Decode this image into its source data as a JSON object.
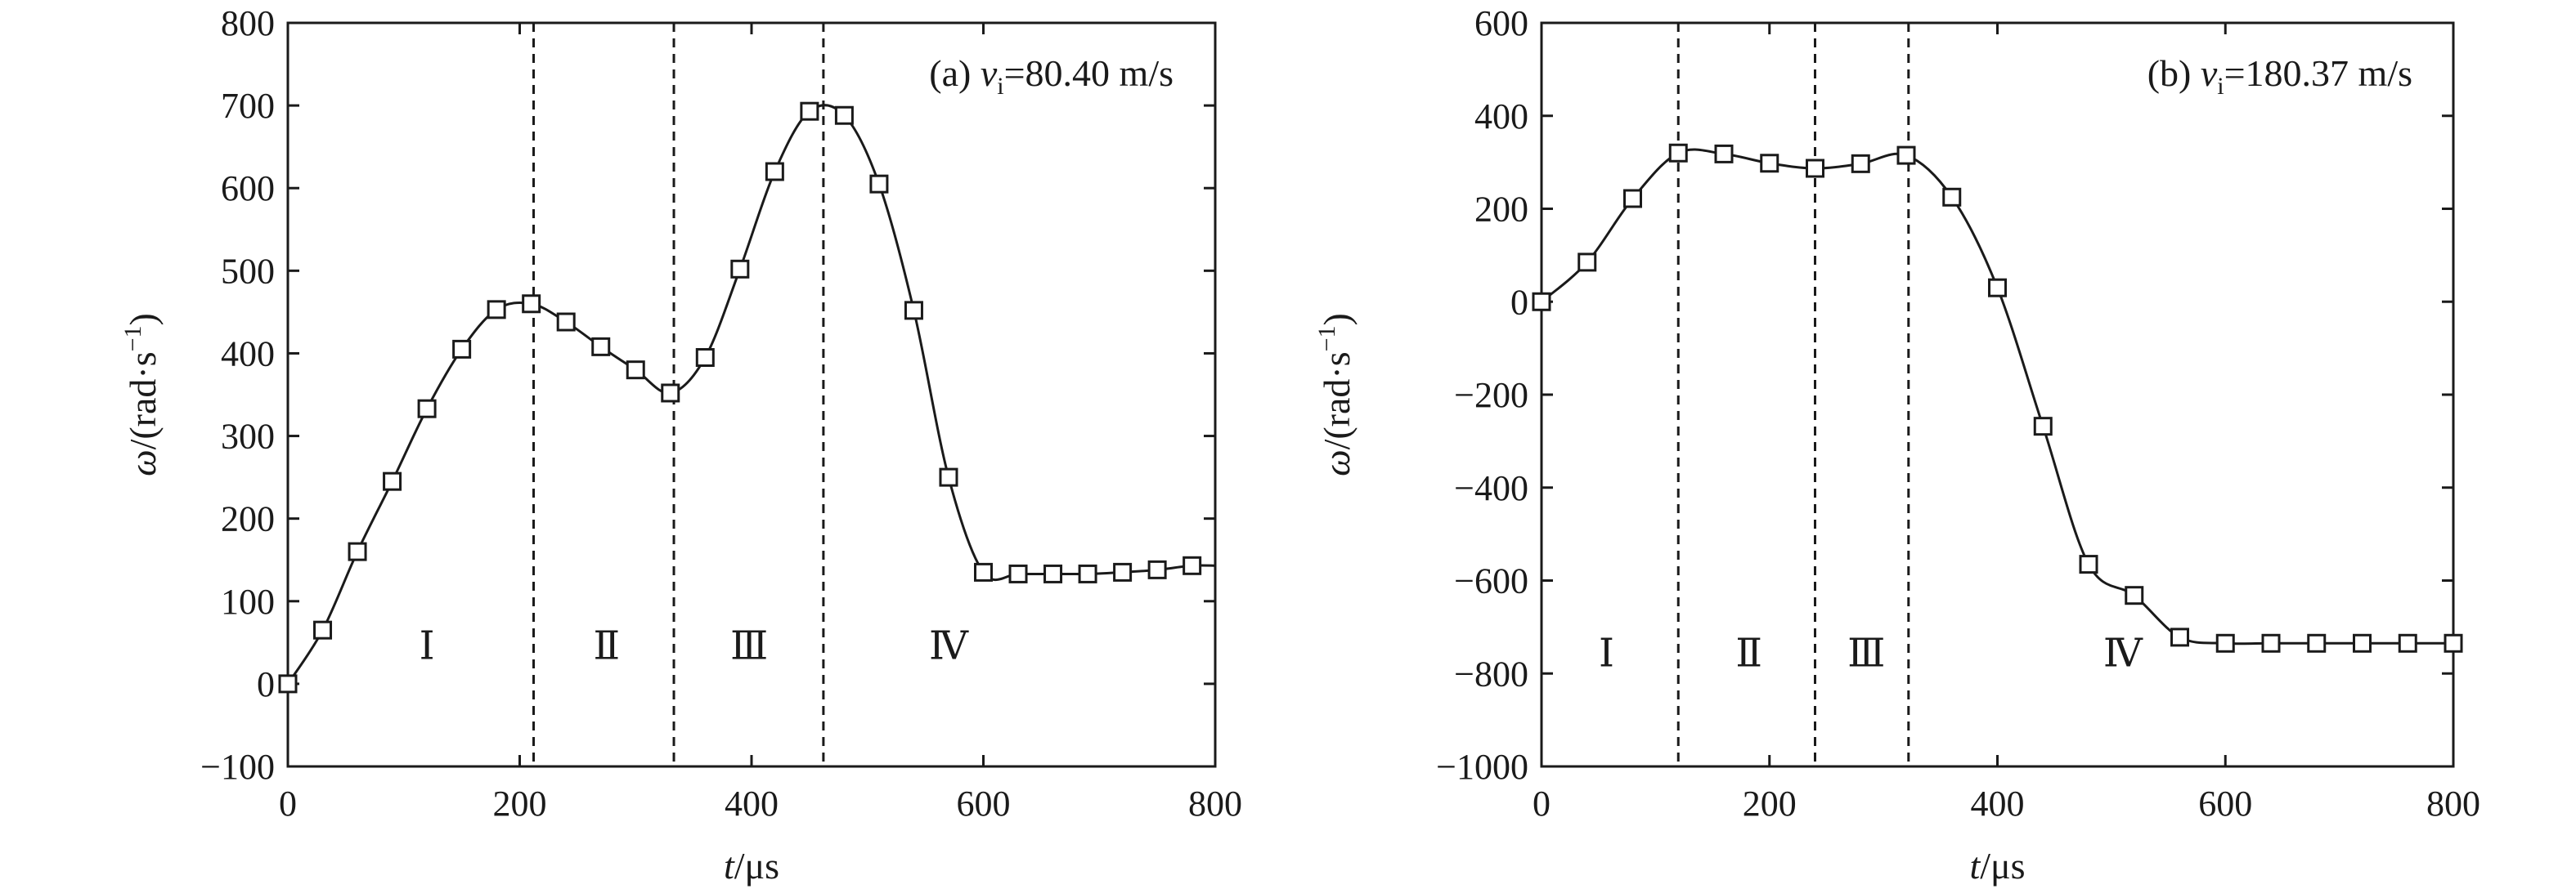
{
  "chart_data": [
    {
      "type": "line",
      "panel": "a",
      "annotation": {
        "prefix": "(a) ",
        "var": "v",
        "sub": "i",
        "value": "=80.40 m/s"
      },
      "xlabel": {
        "var": "t",
        "unit": "/μs"
      },
      "ylabel": {
        "var": "ω",
        "unit_pre": "/(rad·s",
        "sup": "−1",
        "unit_post": ")"
      },
      "xlim": [
        0,
        800
      ],
      "ylim": [
        -100,
        800
      ],
      "xticks": [
        0,
        200,
        400,
        600,
        800
      ],
      "yticks": [
        -100,
        0,
        100,
        200,
        300,
        400,
        500,
        600,
        700,
        800
      ],
      "ytick_labels": [
        "−100",
        "0",
        "100",
        "200",
        "300",
        "400",
        "500",
        "600",
        "700",
        "800"
      ],
      "grid": false,
      "series": [
        {
          "marker": "square",
          "x": [
            0,
            30,
            60,
            90,
            120,
            150,
            180,
            210,
            240,
            270,
            300,
            330,
            360,
            390,
            420,
            450,
            480,
            510,
            540,
            570,
            600,
            630,
            660,
            690,
            720,
            750,
            780
          ],
          "y": [
            0,
            65,
            160,
            245,
            333,
            405,
            453,
            460,
            438,
            408,
            380,
            352,
            395,
            502,
            620,
            693,
            688,
            605,
            452,
            250,
            135,
            133,
            133,
            133,
            135,
            138,
            143
          ]
        }
      ],
      "curve_end": [
        800,
        143
      ],
      "phase_boundaries": [
        212,
        333,
        462
      ],
      "phases": [
        {
          "label": "Ⅰ",
          "x": 120,
          "y": 30
        },
        {
          "label": "Ⅱ",
          "x": 275,
          "y": 30
        },
        {
          "label": "Ⅲ",
          "x": 398,
          "y": 30
        },
        {
          "label": "Ⅳ",
          "x": 570,
          "y": 30
        }
      ]
    },
    {
      "type": "line",
      "panel": "b",
      "annotation": {
        "prefix": "(b) ",
        "var": "v",
        "sub": "i",
        "value": "=180.37 m/s"
      },
      "xlabel": {
        "var": "t",
        "unit": "/μs"
      },
      "ylabel": {
        "var": "ω",
        "unit_pre": "/(rad·s",
        "sup": "−1",
        "unit_post": ")"
      },
      "xlim": [
        0,
        800
      ],
      "ylim": [
        -1000,
        600
      ],
      "xticks": [
        0,
        200,
        400,
        600,
        800
      ],
      "yticks": [
        -1000,
        -800,
        -600,
        -400,
        -200,
        0,
        200,
        400,
        600
      ],
      "ytick_labels": [
        "−1000",
        "−800",
        "−600",
        "−400",
        "−200",
        "0",
        "200",
        "400",
        "600"
      ],
      "grid": false,
      "series": [
        {
          "marker": "square",
          "x": [
            0,
            40,
            80,
            120,
            160,
            200,
            240,
            280,
            320,
            360,
            400,
            440,
            480,
            520,
            560,
            600,
            640,
            680,
            720,
            760,
            800
          ],
          "y": [
            0,
            85,
            222,
            320,
            318,
            298,
            287,
            297,
            315,
            225,
            30,
            -268,
            -565,
            -632,
            -722,
            -735,
            -735,
            -735,
            -735,
            -735,
            -735
          ]
        }
      ],
      "curve_end": [
        800,
        -735
      ],
      "phase_boundaries": [
        120,
        240,
        322
      ],
      "phases": [
        {
          "label": "Ⅰ",
          "x": 57,
          "y": -785
        },
        {
          "label": "Ⅱ",
          "x": 182,
          "y": -785
        },
        {
          "label": "Ⅲ",
          "x": 285,
          "y": -785
        },
        {
          "label": "Ⅳ",
          "x": 510,
          "y": -785
        }
      ]
    }
  ]
}
